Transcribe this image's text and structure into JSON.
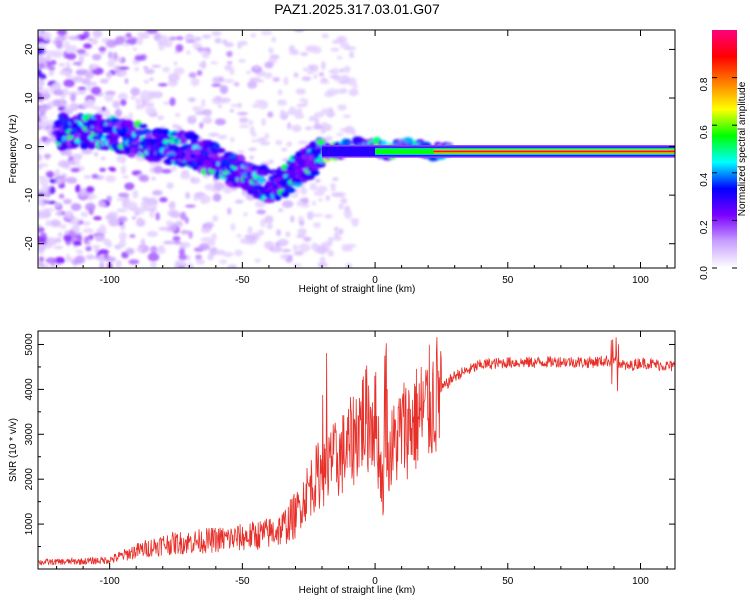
{
  "page_title": "PAZ1.2025.317.03.01.G07",
  "chart_data": [
    {
      "type": "heatmap",
      "title": "PAZ1.2025.317.03.01.G07",
      "xlabel": "Height of straight line (km)",
      "ylabel": "Frequency (Hz)",
      "xlim": [
        -127,
        113
      ],
      "ylim": [
        -25,
        24
      ],
      "xticks": [
        -100,
        -50,
        0,
        50,
        100
      ],
      "yticks": [
        20,
        10,
        0,
        -10,
        -20
      ],
      "xtick_labels": [
        "-100",
        "-50",
        "0",
        "50",
        "100"
      ],
      "ytick_labels": [
        "20",
        "10",
        "0",
        "-10",
        "-20"
      ],
      "ridge": {
        "x": [
          -115,
          -100,
          -90,
          -80,
          -70,
          -60,
          -50,
          -40,
          -35,
          -30,
          -25,
          -20,
          -15,
          -10,
          -5,
          0,
          5,
          10,
          15,
          20,
          25,
          30,
          50,
          100,
          113
        ],
        "freq": [
          3,
          3,
          1.5,
          0,
          -0.5,
          -3,
          -5.5,
          -8,
          -7.5,
          -5,
          -3.5,
          -1.5,
          -1,
          0,
          0,
          0,
          -1,
          0,
          0,
          -1,
          -1,
          -1,
          -1,
          -1,
          -1
        ]
      },
      "colorbar": {
        "label": "Normalized spectral amplitude",
        "range": [
          0,
          1
        ],
        "ticks": [
          0.0,
          0.2,
          0.4,
          0.6,
          0.8
        ],
        "tick_labels": [
          "0.0",
          "0.2",
          "0.4",
          "0.6",
          "0.8"
        ],
        "colors": [
          "#ffffff",
          "#c8a0ff",
          "#7b00ff",
          "#0000ff",
          "#00ffff",
          "#00ff00",
          "#ffff00",
          "#ff8000",
          "#ff0000",
          "#ff0080"
        ]
      }
    },
    {
      "type": "line",
      "xlabel": "Height of straight line (km)",
      "ylabel": "SNR (10 * v/v)",
      "xlim": [
        -127,
        113
      ],
      "ylim": [
        0,
        5300
      ],
      "xticks": [
        -100,
        -50,
        0,
        50,
        100
      ],
      "yticks": [
        1000,
        2000,
        3000,
        4000,
        5000
      ],
      "xtick_labels": [
        "-100",
        "-50",
        "0",
        "50",
        "100"
      ],
      "ytick_labels": [
        "1000",
        "2000",
        "3000",
        "4000",
        "5000"
      ],
      "line_color": "#e8302a",
      "series": [
        {
          "name": "SNR",
          "x": [
            -127,
            -110,
            -100,
            -90,
            -80,
            -70,
            -60,
            -50,
            -40,
            -35,
            -30,
            -25,
            -20,
            -15,
            -10,
            -5,
            0,
            3,
            5,
            10,
            15,
            20,
            25,
            30,
            40,
            50,
            60,
            70,
            80,
            90,
            95,
            100,
            113
          ],
          "values": [
            150,
            170,
            200,
            400,
            550,
            600,
            650,
            700,
            800,
            900,
            1200,
            1800,
            2200,
            2400,
            2700,
            3300,
            3400,
            1800,
            2500,
            3100,
            3300,
            3600,
            4000,
            4300,
            4550,
            4600,
            4600,
            4620,
            4600,
            4650,
            4500,
            4600,
            4500
          ]
        }
      ]
    }
  ]
}
